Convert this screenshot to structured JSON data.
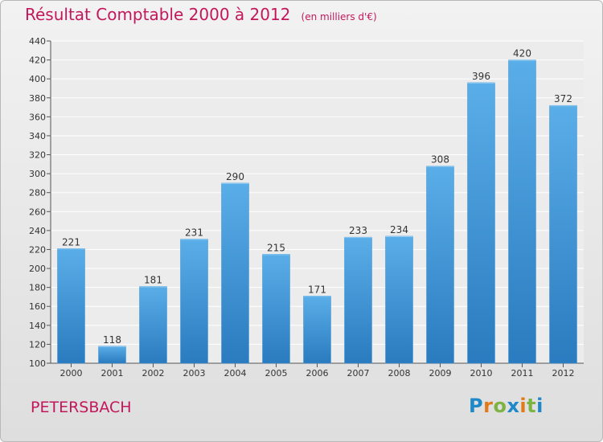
{
  "chart_data": {
    "type": "bar",
    "title": "Résultat Comptable 2000 à 2012",
    "subtitle": "(en milliers d'€)",
    "categories": [
      "2000",
      "2001",
      "2002",
      "2003",
      "2004",
      "2005",
      "2006",
      "2007",
      "2008",
      "2009",
      "2010",
      "2011",
      "2012"
    ],
    "values": [
      221,
      118,
      181,
      231,
      290,
      215,
      171,
      233,
      234,
      308,
      396,
      420,
      372
    ],
    "ylim": [
      100,
      440
    ],
    "yticks": [
      100,
      120,
      140,
      160,
      180,
      200,
      220,
      240,
      260,
      280,
      300,
      320,
      340,
      360,
      380,
      400,
      420,
      440
    ],
    "xlabel": "",
    "ylabel": "",
    "grid": true,
    "colors": {
      "bar_light": "#5aaee8",
      "bar_dark": "#2a7bbf",
      "title": "#c2185b"
    }
  },
  "place": "PETERSBACH",
  "logo": {
    "letters": [
      {
        "ch": "P",
        "color": "#1e88c8"
      },
      {
        "ch": "r",
        "color": "#e07b1a"
      },
      {
        "ch": "o",
        "color": "#7cb342"
      },
      {
        "ch": "x",
        "color": "#1e88c8"
      },
      {
        "ch": "i",
        "color": "#e07b1a"
      },
      {
        "ch": "t",
        "color": "#7cb342"
      },
      {
        "ch": "i",
        "color": "#1e88c8"
      }
    ]
  }
}
